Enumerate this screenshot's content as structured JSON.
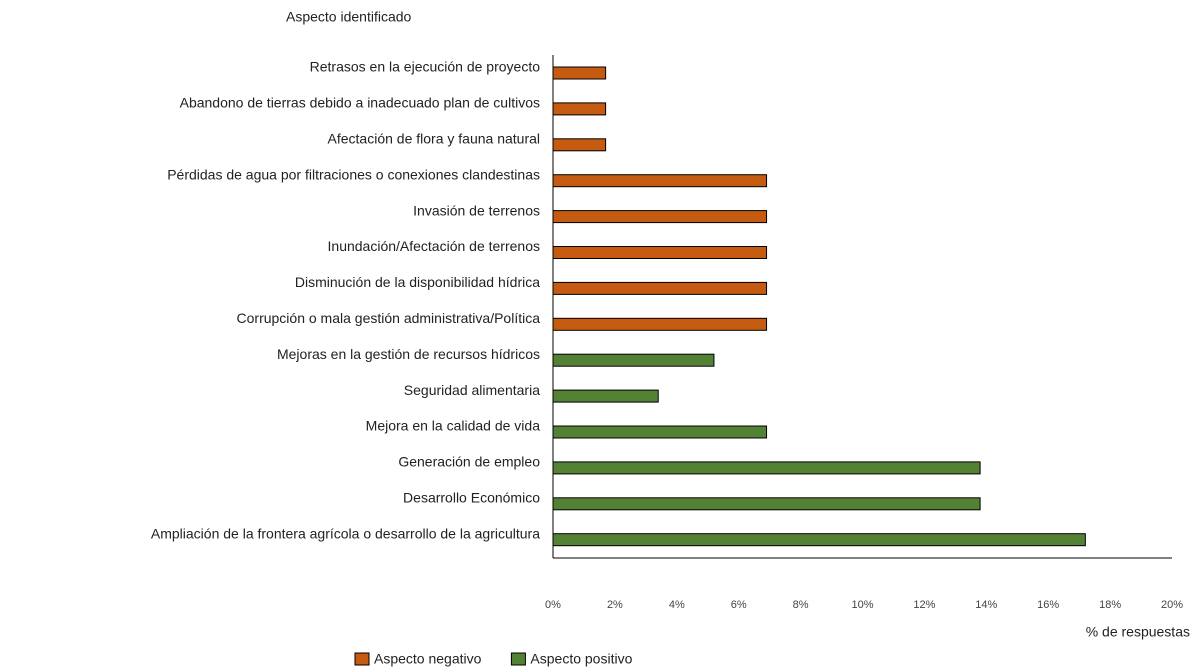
{
  "chart_data": {
    "type": "barh",
    "title": "Aspecto identificado",
    "xlabel": "% de respuestas",
    "categories": [
      "Retrasos en la ejecución de proyecto",
      "Abandono de tierras debido a inadecuado plan de cultivos",
      "Afectación de flora y fauna natural",
      "Pérdidas de agua por filtraciones o conexiones clandestinas",
      "Invasión de terrenos",
      "Inundación/Afectación de terrenos",
      "Disminución de la disponibilidad hídrica",
      "Corrupción o mala gestión administrativa/Política",
      "Mejoras en la gestión de recursos hídricos",
      "Seguridad alimentaria",
      "Mejora en la calidad de vida",
      "Generación de empleo",
      "Desarrollo Económico",
      "Ampliación de la frontera agrícola o desarrollo de la agricultura"
    ],
    "series": [
      {
        "name": "Aspecto negativo",
        "color": "#c55a11",
        "values": [
          1.7,
          1.7,
          1.7,
          6.9,
          6.9,
          6.9,
          6.9,
          6.9,
          null,
          null,
          null,
          null,
          null,
          null
        ]
      },
      {
        "name": "Aspecto positivo",
        "color": "#548235",
        "values": [
          null,
          null,
          null,
          null,
          null,
          null,
          null,
          null,
          5.2,
          3.4,
          6.9,
          13.8,
          13.8,
          17.2
        ]
      }
    ],
    "xlim": [
      0,
      20
    ],
    "xticks": [
      {
        "value": 0,
        "label": "0%"
      },
      {
        "value": 2,
        "label": "2%"
      },
      {
        "value": 4,
        "label": "4%"
      },
      {
        "value": 6,
        "label": "6%"
      },
      {
        "value": 8,
        "label": "8%"
      },
      {
        "value": 10,
        "label": "10%"
      },
      {
        "value": 12,
        "label": "12%"
      },
      {
        "value": 14,
        "label": "14%"
      },
      {
        "value": 16,
        "label": "16%"
      },
      {
        "value": 18,
        "label": "18%"
      },
      {
        "value": 20,
        "label": "20%"
      }
    ],
    "legend": "bottom"
  }
}
